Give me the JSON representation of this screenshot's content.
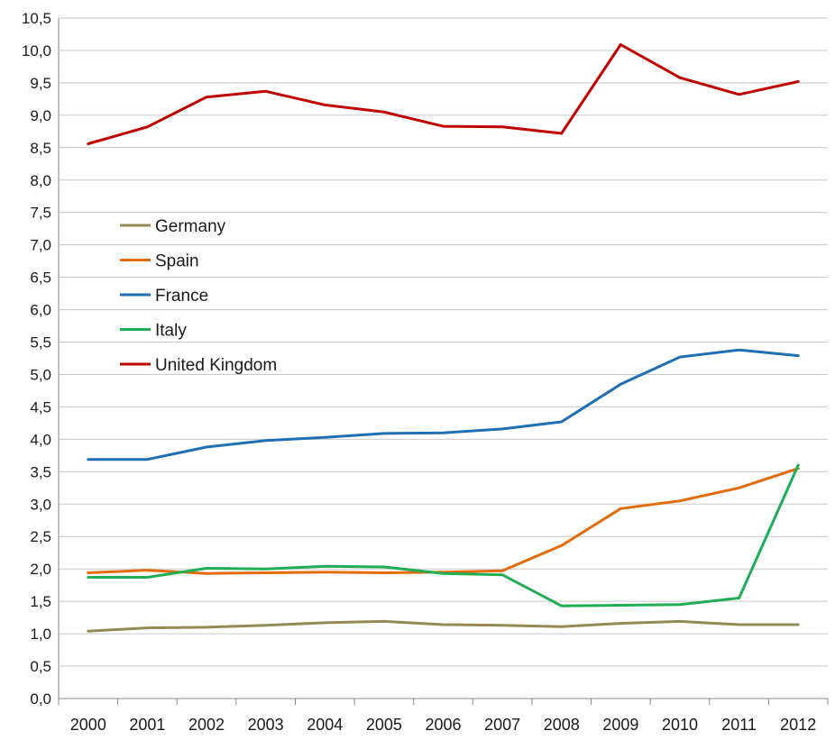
{
  "chart_data": {
    "type": "line",
    "title": "",
    "xlabel": "",
    "ylabel": "",
    "x": [
      "2000",
      "2001",
      "2002",
      "2003",
      "2004",
      "2005",
      "2006",
      "2007",
      "2008",
      "2009",
      "2010",
      "2011",
      "2012"
    ],
    "ylim": [
      0,
      10.5
    ],
    "ytick_step": 0.5,
    "y_tick_labels": [
      "0,0",
      "0,5",
      "1,0",
      "1,5",
      "2,0",
      "2,5",
      "3,0",
      "3,5",
      "4,0",
      "4,5",
      "5,0",
      "5,5",
      "6,0",
      "6,5",
      "7,0",
      "7,5",
      "8,0",
      "8,5",
      "9,0",
      "9,5",
      "10,0",
      "10,5"
    ],
    "grid": "horizontal",
    "legend_position": "left-middle",
    "series": [
      {
        "name": "Germany",
        "color": "#948a54",
        "values": [
          1.04,
          1.09,
          1.1,
          1.13,
          1.17,
          1.19,
          1.14,
          1.13,
          1.11,
          1.16,
          1.19,
          1.14,
          1.14
        ]
      },
      {
        "name": "Spain",
        "color": "#e36c09",
        "values": [
          1.94,
          1.98,
          1.93,
          1.94,
          1.95,
          1.94,
          1.95,
          1.97,
          2.36,
          2.93,
          3.05,
          3.25,
          3.55
        ]
      },
      {
        "name": "France",
        "color": "#1f6fb5",
        "values": [
          3.69,
          3.69,
          3.88,
          3.98,
          4.03,
          4.09,
          4.1,
          4.16,
          4.27,
          4.85,
          5.27,
          5.38,
          5.29
        ]
      },
      {
        "name": "Italy",
        "color": "#1fae55",
        "values": [
          1.87,
          1.87,
          2.01,
          2.0,
          2.04,
          2.03,
          1.93,
          1.91,
          1.43,
          1.44,
          1.45,
          1.55,
          3.6
        ]
      },
      {
        "name": "United Kingdom",
        "color": "#c00000",
        "values": [
          8.56,
          8.82,
          9.28,
          9.37,
          9.16,
          9.05,
          8.83,
          8.82,
          8.72,
          10.09,
          9.58,
          9.32,
          9.52
        ]
      }
    ]
  }
}
